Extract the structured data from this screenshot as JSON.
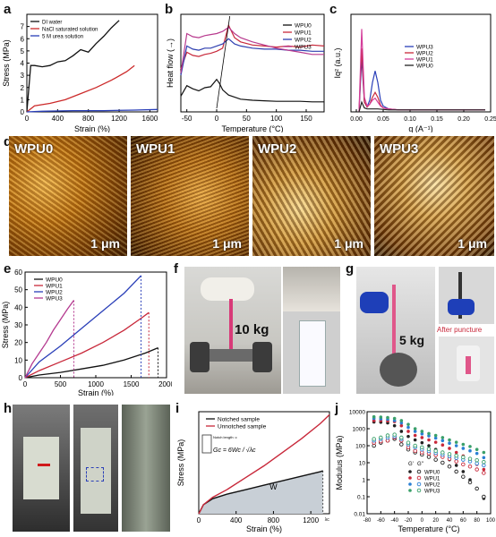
{
  "panel_labels": {
    "a": "a",
    "b": "b",
    "c": "c",
    "d": "d",
    "e": "e",
    "f": "f",
    "g": "g",
    "h": "h",
    "i": "i",
    "j": "j"
  },
  "afm_labels": [
    "WPU0",
    "WPU1",
    "WPU2",
    "WPU3"
  ],
  "afm_scale": "1 μm",
  "photo_f_text": "10 kg",
  "photo_g_text": "5 kg",
  "photo_g_caption": "After puncture",
  "chart_data": [
    {
      "id": "a",
      "type": "line",
      "xlabel": "Strain (%)",
      "ylabel": "Stress (MPa)",
      "xlim": [
        0,
        1700
      ],
      "ylim": [
        0,
        8
      ],
      "xticks": [
        0,
        400,
        800,
        1200,
        1600
      ],
      "yticks": [
        0,
        1,
        2,
        3,
        4,
        5,
        6,
        7
      ],
      "series": [
        {
          "name": "DI water",
          "color": "#111111",
          "x": [
            0,
            50,
            100,
            200,
            300,
            400,
            500,
            600,
            700,
            800,
            900,
            1000,
            1100,
            1200
          ],
          "y": [
            0,
            3.8,
            3.8,
            3.7,
            3.8,
            4.1,
            4.2,
            4.6,
            5.1,
            4.9,
            5.6,
            6.2,
            6.9,
            7.5
          ]
        },
        {
          "name": "NaCl saturated solution",
          "color": "#cc2a2a",
          "x": [
            0,
            100,
            300,
            500,
            700,
            900,
            1100,
            1300,
            1400
          ],
          "y": [
            0,
            0.5,
            0.7,
            1.0,
            1.5,
            2.0,
            2.6,
            3.3,
            3.8
          ]
        },
        {
          "name": "5 M urea solution",
          "color": "#2a3fb8",
          "x": [
            0,
            200,
            600,
            1000,
            1400,
            1700
          ],
          "y": [
            0,
            0.05,
            0.1,
            0.1,
            0.15,
            0.2
          ]
        }
      ]
    },
    {
      "id": "b",
      "type": "line",
      "xlabel": "Temperature (°C)",
      "ylabel": "Heat flow (→)",
      "xlim": [
        -60,
        180
      ],
      "xticks": [
        -50,
        0,
        50,
        100,
        150
      ],
      "series": [
        {
          "name": "WPU0",
          "color": "#111111",
          "x": [
            -60,
            -50,
            -40,
            -30,
            -20,
            -10,
            0,
            5,
            10,
            20,
            40,
            60,
            80,
            100,
            120,
            140,
            160,
            180
          ],
          "y": [
            1.0,
            2.0,
            1.7,
            1.5,
            1.8,
            1.9,
            2.6,
            2.2,
            1.6,
            1.1,
            0.7,
            0.6,
            0.55,
            0.5,
            0.5,
            0.5,
            0.45,
            0.45
          ]
        },
        {
          "name": "WPU1",
          "color": "#c8283a",
          "x": [
            -60,
            -50,
            -40,
            -30,
            -20,
            -10,
            0,
            10,
            20,
            30,
            40,
            60,
            80,
            100,
            120,
            140,
            160,
            180
          ],
          "y": [
            3.6,
            5.2,
            4.9,
            4.8,
            5.0,
            5.1,
            5.3,
            5.6,
            7.8,
            6.6,
            6.2,
            5.9,
            5.8,
            5.7,
            5.8,
            5.7,
            5.9,
            5.8
          ]
        },
        {
          "name": "WPU2",
          "color": "#2e3fb0",
          "x": [
            -60,
            -50,
            -40,
            -30,
            -20,
            -10,
            0,
            10,
            20,
            30,
            40,
            60,
            80,
            100,
            120,
            140,
            160,
            180
          ],
          "y": [
            3.0,
            5.8,
            5.5,
            5.4,
            5.6,
            5.6,
            5.8,
            6.0,
            6.5,
            6.0,
            5.8,
            5.6,
            5.5,
            5.5,
            5.4,
            5.4,
            5.3,
            5.3
          ]
        },
        {
          "name": "WPU3",
          "color": "#b83a8e",
          "x": [
            -60,
            -50,
            -40,
            -30,
            -20,
            -10,
            0,
            10,
            20,
            30,
            40,
            60,
            80,
            100,
            120,
            140,
            160,
            180
          ],
          "y": [
            3.2,
            7.0,
            6.7,
            6.6,
            6.8,
            6.9,
            7.0,
            7.2,
            7.6,
            7.0,
            6.6,
            6.2,
            5.9,
            5.6,
            5.4,
            5.2,
            5.0,
            5.0
          ]
        }
      ]
    },
    {
      "id": "c",
      "type": "line",
      "xlabel": "q (A⁻¹)",
      "ylabel": "Iq² (a.u.)",
      "xlim": [
        -0.01,
        0.25
      ],
      "ylim": [
        0,
        1
      ],
      "xticks": [
        0.0,
        0.05,
        0.1,
        0.15,
        0.2,
        0.25
      ],
      "xticklabels": [
        "0.00",
        "0.05",
        "0.10",
        "0.15",
        "0.20",
        "0.25"
      ],
      "series": [
        {
          "name": "WPU3",
          "color": "#2a3fb8",
          "x": [
            0.005,
            0.01,
            0.015,
            0.02,
            0.025,
            0.03,
            0.035,
            0.04,
            0.045,
            0.05,
            0.06,
            0.08,
            0.12,
            0.2,
            0.24
          ],
          "y": [
            0.0,
            0.55,
            0.1,
            0.05,
            0.12,
            0.3,
            0.42,
            0.3,
            0.12,
            0.06,
            0.03,
            0.02,
            0.02,
            0.02,
            0.02
          ]
        },
        {
          "name": "WPU2",
          "color": "#c8283a",
          "x": [
            0.005,
            0.01,
            0.015,
            0.02,
            0.025,
            0.03,
            0.035,
            0.04,
            0.045,
            0.05,
            0.06,
            0.08,
            0.12,
            0.2,
            0.24
          ],
          "y": [
            0.0,
            0.65,
            0.1,
            0.05,
            0.08,
            0.15,
            0.2,
            0.15,
            0.07,
            0.04,
            0.03,
            0.02,
            0.02,
            0.02,
            0.02
          ]
        },
        {
          "name": "WPU1",
          "color": "#d43d9a",
          "x": [
            0.005,
            0.01,
            0.015,
            0.02,
            0.025,
            0.03,
            0.035,
            0.04,
            0.045,
            0.05,
            0.06,
            0.08,
            0.12,
            0.2,
            0.24
          ],
          "y": [
            0.0,
            0.85,
            0.15,
            0.06,
            0.08,
            0.12,
            0.14,
            0.1,
            0.06,
            0.04,
            0.03,
            0.02,
            0.02,
            0.02,
            0.02
          ]
        },
        {
          "name": "WPU0",
          "color": "#222222",
          "x": [
            0.005,
            0.01,
            0.015,
            0.02,
            0.03,
            0.04,
            0.06,
            0.1,
            0.2,
            0.24
          ],
          "y": [
            0.0,
            0.1,
            0.04,
            0.03,
            0.03,
            0.03,
            0.02,
            0.02,
            0.02,
            0.02
          ]
        }
      ]
    },
    {
      "id": "e",
      "type": "line",
      "xlabel": "Strain (%)",
      "ylabel": "Stress (MPa)",
      "xlim": [
        0,
        2000
      ],
      "ylim": [
        0,
        60
      ],
      "xticks": [
        0,
        500,
        1000,
        1500,
        2000
      ],
      "yticks": [
        0,
        10,
        20,
        30,
        40,
        50,
        60
      ],
      "series": [
        {
          "name": "WPU0",
          "color": "#111111",
          "x": [
            0,
            200,
            500,
            800,
            1100,
            1400,
            1700,
            1880
          ],
          "y": [
            0,
            1.5,
            3,
            5,
            7,
            10,
            14,
            17
          ]
        },
        {
          "name": "WPU1",
          "color": "#c8283a",
          "x": [
            0,
            200,
            500,
            800,
            1100,
            1400,
            1650,
            1750
          ],
          "y": [
            0,
            4,
            9,
            14,
            20,
            27,
            34,
            37
          ]
        },
        {
          "name": "WPU2",
          "color": "#2a3fb8",
          "x": [
            0,
            200,
            500,
            800,
            1100,
            1400,
            1640
          ],
          "y": [
            0,
            9,
            18,
            28,
            38,
            48,
            58
          ]
        },
        {
          "name": "WPU3",
          "color": "#b53a90",
          "x": [
            0,
            100,
            200,
            300,
            400,
            500,
            600,
            690
          ],
          "y": [
            0,
            8,
            14,
            20,
            27,
            33,
            39,
            44
          ]
        }
      ],
      "break_lines": [
        690,
        1640,
        1750,
        1880
      ]
    },
    {
      "id": "i",
      "type": "line",
      "xlabel": "Strain (%)",
      "ylabel": "Stress (MPa)",
      "xlim": [
        0,
        1400
      ],
      "xticks": [
        0,
        400,
        800,
        1200
      ],
      "xticklabels": [
        "0",
        "400",
        "800",
        "1200"
      ],
      "annotation_W": "W",
      "annotation_notch": "Notch length: c",
      "formula": "Gc = 6Wc / √λc",
      "tick_label_lc": "λc",
      "series": [
        {
          "name": "Notched sample",
          "color": "#111111",
          "x": [
            0,
            50,
            150,
            300,
            500,
            700,
            900,
            1100,
            1300,
            1330
          ],
          "y": [
            0,
            3,
            5,
            6.5,
            8,
            9.5,
            11,
            12.5,
            14,
            14.3
          ]
        },
        {
          "name": "Unnotched sample",
          "color": "#c8283a",
          "x": [
            0,
            50,
            150,
            300,
            500,
            700,
            900,
            1100,
            1300,
            1400
          ],
          "y": [
            0,
            3,
            5.5,
            8,
            12,
            16,
            20.5,
            25,
            30,
            33
          ]
        }
      ]
    },
    {
      "id": "j",
      "type": "scatter",
      "xlabel": "Temperature (°C)",
      "ylabel": "Modulus (MPa)",
      "xlim": [
        -80,
        100
      ],
      "ylim_log": [
        0.01,
        10000
      ],
      "xticks": [
        -80,
        -60,
        -40,
        -20,
        0,
        20,
        40,
        60,
        80,
        100
      ],
      "yticklabels": [
        "0.01",
        "0.1",
        "1",
        "10",
        "100",
        "1000",
        "10000"
      ],
      "legend_header": [
        "G'",
        "G''"
      ],
      "series": [
        {
          "name": "WPU0",
          "color": "#222222",
          "temps": [
            -70,
            -60,
            -50,
            -40,
            -30,
            -20,
            -10,
            0,
            10,
            20,
            30,
            40,
            50,
            60,
            70,
            80,
            90
          ],
          "gp": [
            2500,
            2400,
            2200,
            1500,
            700,
            350,
            220,
            150,
            100,
            60,
            30,
            15,
            7,
            3,
            1,
            0.3,
            0.08
          ],
          "gpp": [
            100,
            150,
            200,
            250,
            120,
            60,
            40,
            30,
            22,
            15,
            10,
            6,
            3,
            1.5,
            0.7,
            0.3,
            0.1
          ]
        },
        {
          "name": "WPU1",
          "color": "#c8283a",
          "temps": [
            -70,
            -60,
            -50,
            -40,
            -30,
            -20,
            -10,
            0,
            10,
            20,
            30,
            40,
            50,
            60,
            70,
            80,
            90
          ],
          "gp": [
            3000,
            3000,
            2900,
            2600,
            1500,
            700,
            400,
            300,
            220,
            160,
            110,
            70,
            40,
            25,
            15,
            8,
            4
          ],
          "gpp": [
            150,
            180,
            200,
            300,
            200,
            80,
            50,
            40,
            35,
            28,
            22,
            17,
            12,
            8,
            6,
            4,
            2.5
          ]
        },
        {
          "name": "WPU2",
          "color": "#2a7fd4",
          "temps": [
            -70,
            -60,
            -50,
            -40,
            -30,
            -20,
            -10,
            0,
            10,
            20,
            30,
            40,
            50,
            60,
            70,
            80,
            90
          ],
          "gp": [
            4000,
            3800,
            3600,
            3000,
            2200,
            1200,
            700,
            500,
            380,
            280,
            200,
            140,
            100,
            70,
            50,
            35,
            20
          ],
          "gpp": [
            200,
            250,
            300,
            350,
            250,
            120,
            80,
            60,
            48,
            38,
            30,
            24,
            19,
            15,
            12,
            9,
            7
          ]
        },
        {
          "name": "WPU3",
          "color": "#3aa06a",
          "temps": [
            -70,
            -60,
            -50,
            -40,
            -30,
            -20,
            -10,
            0,
            10,
            20,
            30,
            40,
            50,
            60,
            70,
            80,
            90
          ],
          "gp": [
            5000,
            4800,
            4500,
            4000,
            3000,
            1800,
            1000,
            700,
            520,
            400,
            300,
            220,
            160,
            120,
            90,
            60,
            40
          ],
          "gpp": [
            250,
            300,
            400,
            450,
            300,
            150,
            100,
            80,
            64,
            50,
            40,
            32,
            26,
            21,
            17,
            14,
            11
          ]
        }
      ]
    }
  ]
}
